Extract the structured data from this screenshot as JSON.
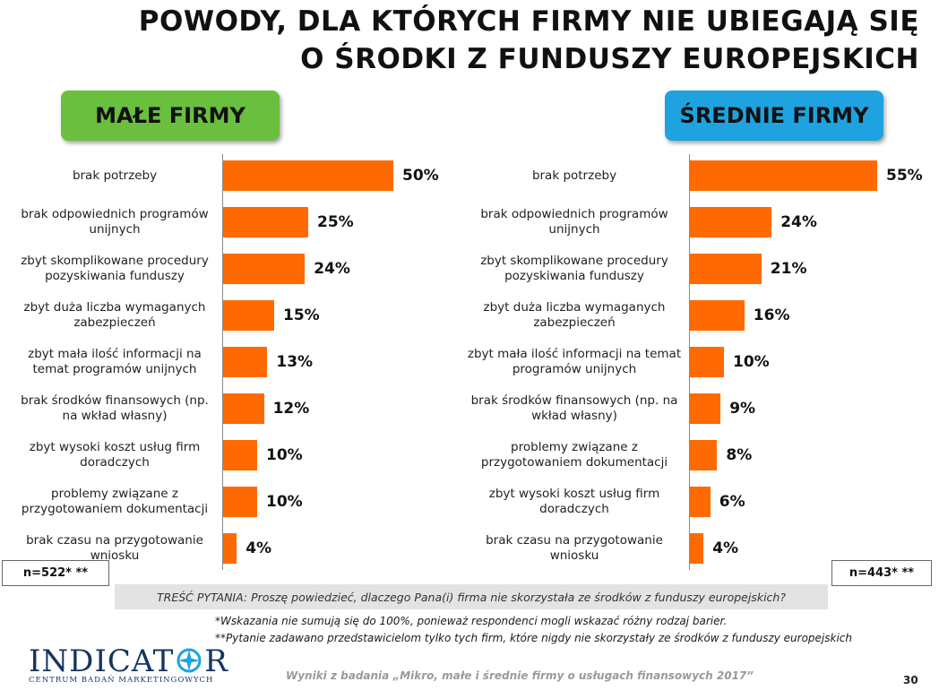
{
  "title": {
    "line1": "POWODY, DLA KTÓRYCH FIRMY NIE UBIEGAJĄ SIĘ",
    "line2": "O ŚRODKI Z FUNDUSZY EUROPEJSKICH"
  },
  "groups": {
    "small": "MAŁE FIRMY",
    "medium": "ŚREDNIE FIRMY"
  },
  "chart_data": [
    {
      "type": "bar",
      "orientation": "horizontal",
      "title": "MAŁE FIRMY",
      "unit": "%",
      "xlim": [
        0,
        100
      ],
      "categories": [
        "brak potrzeby",
        "brak odpowiednich programów unijnych",
        "zbyt skomplikowane procedury pozyskiwania funduszy",
        "zbyt duża liczba wymaganych zabezpieczeń",
        "zbyt mała ilość informacji na temat programów unijnych",
        "brak środków finansowych (np. na wkład własny)",
        "zbyt wysoki koszt usług firm doradczych",
        "problemy związane z przygotowaniem dokumentacji",
        "brak czasu na przygotowanie wniosku"
      ],
      "values": [
        50,
        25,
        24,
        15,
        13,
        12,
        10,
        10,
        4
      ],
      "labels": [
        "50%",
        "25%",
        "24%",
        "15%",
        "13%",
        "12%",
        "10%",
        "10%",
        "4%"
      ],
      "color": "#ff6a00",
      "grid": false,
      "legend": "none"
    },
    {
      "type": "bar",
      "orientation": "horizontal",
      "title": "ŚREDNIE FIRMY",
      "unit": "%",
      "xlim": [
        0,
        100
      ],
      "categories": [
        "brak potrzeby",
        "brak odpowiednich programów unijnych",
        "zbyt skomplikowane procedury pozyskiwania funduszy",
        "zbyt duża liczba wymaganych zabezpieczeń",
        "zbyt mała ilość informacji na temat programów unijnych",
        "brak środków finansowych (np. na wkład własny)",
        "problemy związane z przygotowaniem dokumentacji",
        "zbyt wysoki koszt usług firm doradczych",
        "brak czasu na przygotowanie wniosku"
      ],
      "values": [
        55,
        24,
        21,
        16,
        10,
        9,
        8,
        6,
        4
      ],
      "labels": [
        "55%",
        "24%",
        "21%",
        "16%",
        "10%",
        "9%",
        "8%",
        "6%",
        "4%"
      ],
      "color": "#ff6a00",
      "grid": false,
      "legend": "none"
    }
  ],
  "sample": {
    "small": "n=522* **",
    "medium": "n=443* **"
  },
  "question": "TREŚĆ PYTANIA: Proszę powiedzieć, dlaczego Pana(i) firma nie skorzystała ze środków z funduszy europejskich?",
  "notes": {
    "n1": "*Wskazania nie sumują się do 100%, ponieważ respondenci mogli wskazać różny rodzaj barier.",
    "n2": "**Pytanie zadawano przedstawicielom tylko tych firm, które nigdy nie skorzystały ze środków z funduszy europejskich"
  },
  "logo": {
    "name": "INDICATOR",
    "subtitle": "CENTRUM BADAŃ MARKETINGOWYCH",
    "colors": {
      "text": "#15355f",
      "mark": "#1ea3e0"
    }
  },
  "source": "Wyniki z badania „Mikro, małe i średnie firmy o usługach finansowych 2017”",
  "page_number": "30"
}
